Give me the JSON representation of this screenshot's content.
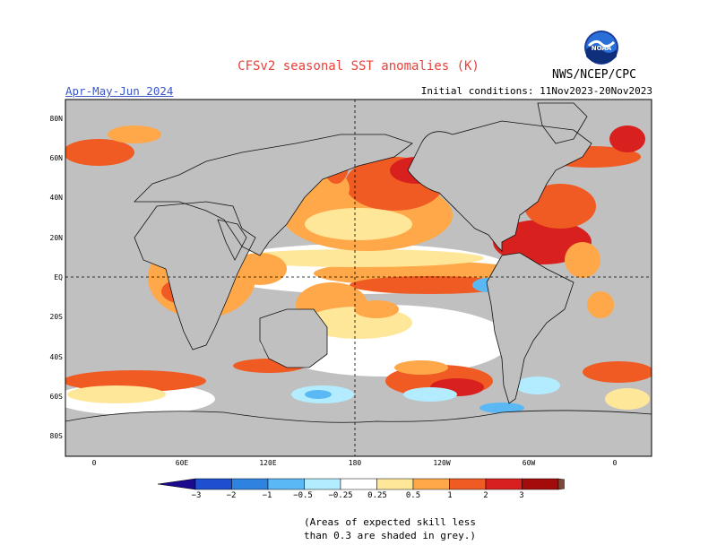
{
  "header": {
    "title": "CFSv2 seasonal SST anomalies (K)",
    "season": "Apr-May-Jun 2024",
    "initial_conditions": "Initial conditions: 11Nov2023-20Nov2023",
    "agency": "NWS/NCEP/CPC",
    "logo_text": "NOAA"
  },
  "map": {
    "lat_labels": [
      "80N",
      "60N",
      "40N",
      "20N",
      "EQ",
      "20S",
      "40S",
      "60S",
      "80S"
    ],
    "lon_labels": [
      "0",
      "60E",
      "120E",
      "180",
      "120W",
      "60W",
      "0"
    ],
    "colors": {
      "grey": "#c0c0c0",
      "ocean": "#ffffff",
      "pos_025": "#ffe79a",
      "pos_05": "#ffa84a",
      "pos_1": "#f05a23",
      "pos_2": "#d8201e",
      "pos_3": "#a40b0b",
      "neg_025": "#b3ecff",
      "neg_05": "#5ab9f5",
      "neg_1": "#2e82e0"
    }
  },
  "colorbar": {
    "labels": [
      "−3",
      "−2",
      "−1",
      "−0.5",
      "−0.25",
      "0.25",
      "0.5",
      "1",
      "2",
      "3"
    ],
    "colors": [
      "#1a0b8e",
      "#1f4fd0",
      "#2e82e0",
      "#5ab9f5",
      "#b3ecff",
      "#ffffff",
      "#ffe79a",
      "#ffa84a",
      "#f05a23",
      "#d8201e",
      "#a40b0b",
      "#7a4a3a"
    ]
  },
  "note": {
    "line1": "(Areas of expected skill less",
    "line2": "than 0.3 are shaded in grey.)"
  }
}
